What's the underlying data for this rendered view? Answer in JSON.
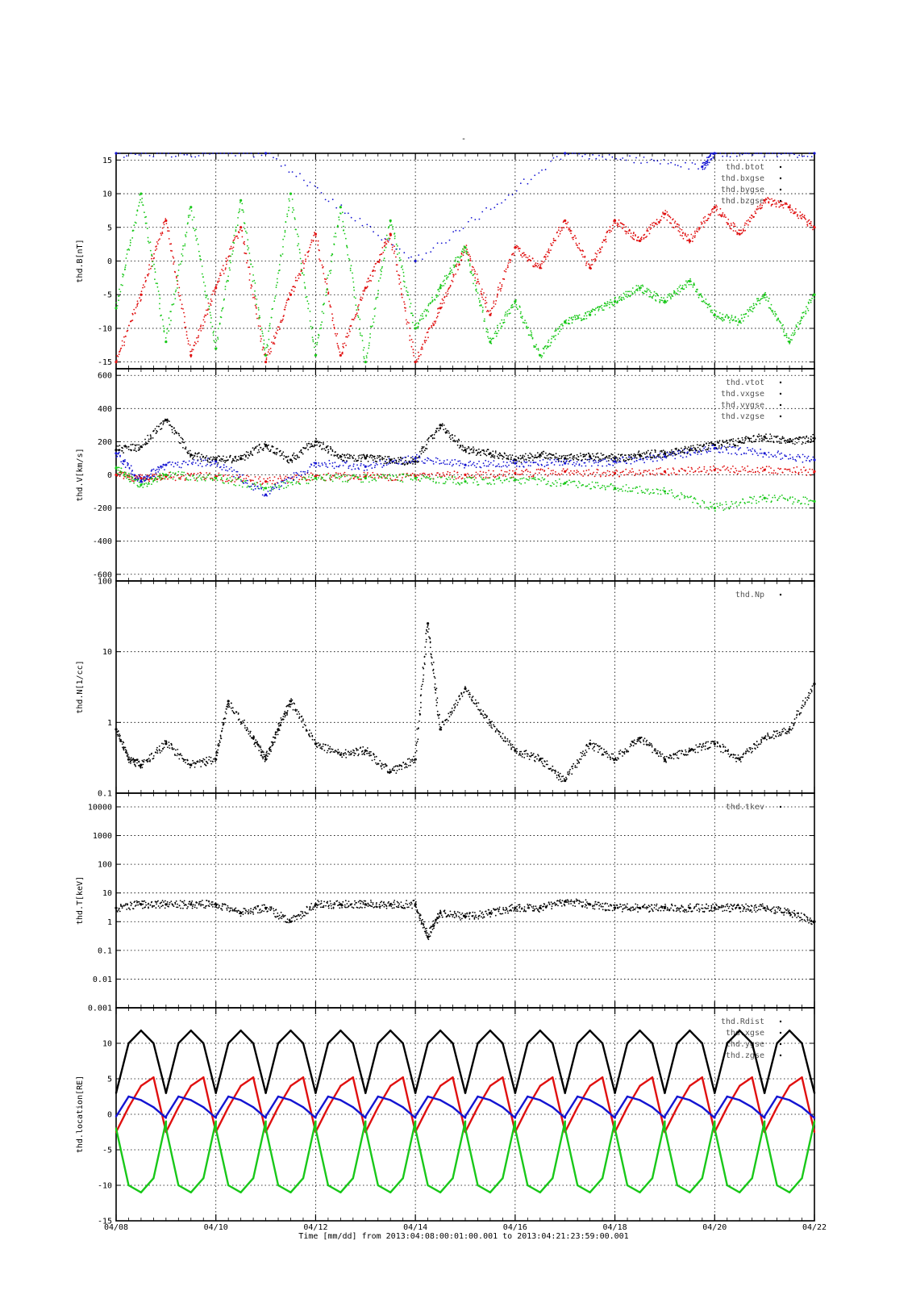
{
  "figure": {
    "title": "-",
    "time_caption": "Time [mm/dd]  from 2013:04:08:00:01:00.001  to  2013:04:21:23:59:00.001",
    "x_tick_labels": [
      "04/08",
      "04/10",
      "04/12",
      "04/14",
      "04/16",
      "04/18",
      "04/20",
      "04/22"
    ],
    "x_tick_days": [
      0,
      2,
      4,
      6,
      8,
      10,
      12,
      14
    ]
  },
  "colors": {
    "black": "#000000",
    "red": "#e01010",
    "green": "#19c819",
    "blue": "#1414d2",
    "axis": "#000000"
  },
  "chart_data": [
    {
      "type": "scatter",
      "ylabel": "thd.B[nT]",
      "ylim": [
        -16,
        16
      ],
      "yscale": "linear",
      "ytick_values": [
        -15,
        -10,
        -5,
        0,
        5,
        10,
        15
      ],
      "ytick_labels": [
        "-15",
        "-10",
        "-5",
        "0",
        "5",
        "10",
        "15"
      ],
      "legend": [
        "thd.btot",
        "thd.bxgse",
        "thd.bygse",
        "thd.bzgse"
      ],
      "series": [
        {
          "name": "thd.bxgse",
          "color": "red",
          "x": [
            "04/08",
            "04/08 12:00",
            "04/09",
            "04/09 12:00",
            "04/10",
            "04/10 12:00",
            "04/11",
            "04/11 12:00",
            "04/12",
            "04/12 12:00",
            "04/13",
            "04/13 12:00",
            "04/14",
            "04/14 12:00",
            "04/15",
            "04/15 12:00",
            "04/16",
            "04/16 12:00",
            "04/17",
            "04/17 12:00",
            "04/18",
            "04/18 12:00",
            "04/19",
            "04/19 12:00",
            "04/20",
            "04/20 12:00",
            "04/21",
            "04/21 12:00",
            "04/22"
          ],
          "values": [
            -15,
            -5,
            6,
            -14,
            -4,
            5,
            -15,
            -5,
            4,
            -14,
            -4,
            4,
            -15,
            -7,
            2,
            -8,
            2,
            -1,
            6,
            -1,
            6,
            3,
            7,
            3,
            8,
            4,
            9,
            8,
            5
          ]
        },
        {
          "name": "thd.bygse",
          "color": "green",
          "x": [
            "04/08",
            "04/08 12:00",
            "04/09",
            "04/09 12:00",
            "04/10",
            "04/10 12:00",
            "04/11",
            "04/11 12:00",
            "04/12",
            "04/12 12:00",
            "04/13",
            "04/13 12:00",
            "04/14",
            "04/14 12:00",
            "04/15",
            "04/15 12:00",
            "04/16",
            "04/16 12:00",
            "04/17",
            "04/17 12:00",
            "04/18",
            "04/18 12:00",
            "04/19",
            "04/19 12:00",
            "04/20",
            "04/20 12:00",
            "04/21",
            "04/21 12:00",
            "04/22"
          ],
          "values": [
            -7,
            10,
            -12,
            8,
            -13,
            9,
            -14,
            10,
            -14,
            8,
            -15,
            6,
            -10,
            -4,
            2,
            -12,
            -6,
            -14,
            -9,
            -8,
            -6,
            -4,
            -6,
            -3,
            -8,
            -9,
            -5,
            -12,
            -5
          ]
        },
        {
          "name": "thd.bzgse",
          "color": "blue",
          "x": [
            "04/08",
            "04/11",
            "04/14",
            "04/17",
            "04/19 18:00",
            "04/20",
            "04/22"
          ],
          "values": [
            16,
            16,
            0,
            16,
            14,
            16,
            16
          ]
        }
      ]
    },
    {
      "type": "scatter",
      "ylabel": "thd.V[km/s]",
      "ylim": [
        -640,
        640
      ],
      "yscale": "linear",
      "ytick_values": [
        -600,
        -400,
        -200,
        0,
        200,
        400,
        600
      ],
      "ytick_labels": [
        "-600",
        "-400",
        "-200",
        "0",
        "200",
        "400",
        "600"
      ],
      "legend": [
        "thd.vtot",
        "thd.vxgse",
        "thd.vygse",
        "thd.vzgse"
      ],
      "series": [
        {
          "name": "thd.vtot",
          "color": "black",
          "x": [
            "04/08",
            "04/08 12:00",
            "04/09",
            "04/09 12:00",
            "04/10",
            "04/10 12:00",
            "04/11",
            "04/11 12:00",
            "04/12",
            "04/12 12:00",
            "04/13",
            "04/13 12:00",
            "04/14",
            "04/14 12:00",
            "04/15",
            "04/15 12:00",
            "04/16",
            "04/16 12:00",
            "04/17",
            "04/17 12:00",
            "04/18",
            "04/18 12:00",
            "04/19",
            "04/19 12:00",
            "04/20",
            "04/20 12:00",
            "04/21",
            "04/21 12:00",
            "04/22"
          ],
          "values": [
            150,
            170,
            330,
            120,
            90,
            100,
            180,
            90,
            200,
            110,
            100,
            90,
            80,
            300,
            150,
            130,
            90,
            120,
            100,
            110,
            100,
            120,
            130,
            150,
            180,
            200,
            230,
            200,
            220
          ]
        },
        {
          "name": "thd.vxgse",
          "color": "red",
          "x": [
            "04/08",
            "04/08 12:00",
            "04/09",
            "04/10",
            "04/11",
            "04/12",
            "04/13",
            "04/14",
            "04/15",
            "04/16",
            "04/17",
            "04/18",
            "04/19",
            "04/20",
            "04/21",
            "04/22"
          ],
          "values": [
            0,
            -20,
            -10,
            -10,
            -40,
            -10,
            -10,
            -10,
            0,
            10,
            20,
            10,
            20,
            30,
            30,
            20
          ]
        },
        {
          "name": "thd.vygse",
          "color": "green",
          "x": [
            "04/08",
            "04/08 12:00",
            "04/09",
            "04/10",
            "04/11",
            "04/12",
            "04/13",
            "04/14",
            "04/15",
            "04/16",
            "04/17",
            "04/18",
            "04/19",
            "04/20",
            "04/21",
            "04/22"
          ],
          "values": [
            40,
            -60,
            0,
            -20,
            -80,
            -20,
            -20,
            -20,
            -40,
            -30,
            -50,
            -80,
            -100,
            -200,
            -140,
            -160
          ]
        },
        {
          "name": "thd.vzgse",
          "color": "blue",
          "x": [
            "04/08",
            "04/08 12:00",
            "04/09",
            "04/10",
            "04/11",
            "04/12",
            "04/13",
            "04/14",
            "04/15",
            "04/16",
            "04/17",
            "04/18",
            "04/19",
            "04/20",
            "04/21",
            "04/22"
          ],
          "values": [
            130,
            -40,
            60,
            80,
            -120,
            70,
            50,
            100,
            60,
            70,
            70,
            80,
            110,
            160,
            130,
            90
          ]
        }
      ]
    },
    {
      "type": "scatter",
      "ylabel": "thd.N[1/cc]",
      "ylim": [
        0.1,
        100
      ],
      "yscale": "log",
      "ytick_values": [
        0.1,
        1,
        10,
        100
      ],
      "ytick_labels": [
        "0.1",
        "1",
        "10",
        "100"
      ],
      "legend": [
        "thd.Np"
      ],
      "series": [
        {
          "name": "thd.Np",
          "color": "black",
          "x": [
            "04/08",
            "04/08 06:00",
            "04/08 12:00",
            "04/09",
            "04/09 12:00",
            "04/10",
            "04/10 06:00",
            "04/10 18:00",
            "04/11",
            "04/11 06:00",
            "04/11 12:00",
            "04/12",
            "04/12 12:00",
            "04/13",
            "04/13 12:00",
            "04/14",
            "04/14 06:00",
            "04/14 12:00",
            "04/15",
            "04/15 12:00",
            "04/16",
            "04/16 12:00",
            "04/17",
            "04/17 12:00",
            "04/18",
            "04/18 12:00",
            "04/19",
            "04/19 12:00",
            "04/20",
            "04/20 12:00",
            "04/21",
            "04/21 12:00",
            "04/22"
          ],
          "values": [
            0.8,
            0.3,
            0.25,
            0.5,
            0.25,
            0.3,
            2,
            0.6,
            0.3,
            0.8,
            2,
            0.5,
            0.35,
            0.4,
            0.2,
            0.3,
            25,
            0.8,
            3,
            1,
            0.4,
            0.3,
            0.15,
            0.5,
            0.3,
            0.6,
            0.3,
            0.4,
            0.5,
            0.3,
            0.6,
            0.8,
            3.5
          ]
        }
      ]
    },
    {
      "type": "scatter",
      "ylabel": "thd.T[keV]",
      "ylim": [
        0.001,
        30000
      ],
      "yscale": "log",
      "ytick_values": [
        0.001,
        0.01,
        0.1,
        1,
        10,
        100,
        1000,
        10000
      ],
      "ytick_labels": [
        "0.001",
        "0.01",
        "0.1",
        "1",
        "10",
        "100",
        "1000",
        "10000"
      ],
      "legend": [
        "thd.tkev"
      ],
      "series": [
        {
          "name": "thd.tkev",
          "color": "black",
          "x": [
            "04/08",
            "04/08 12:00",
            "04/09",
            "04/09 12:00",
            "04/10",
            "04/10 12:00",
            "04/11",
            "04/11 12:00",
            "04/12",
            "04/12 12:00",
            "04/13",
            "04/13 12:00",
            "04/14",
            "04/14 06:00",
            "04/14 12:00",
            "04/15",
            "04/15 12:00",
            "04/16",
            "04/16 12:00",
            "04/17",
            "04/17 12:00",
            "04/18",
            "04/18 12:00",
            "04/19",
            "04/19 12:00",
            "04/20",
            "04/20 12:00",
            "04/21",
            "04/21 12:00",
            "04/22"
          ],
          "values": [
            3,
            4,
            4,
            4,
            4,
            2,
            3,
            1,
            4,
            4,
            4,
            4,
            4,
            0.3,
            2,
            1.5,
            2,
            3,
            3,
            5,
            4,
            3,
            3,
            3,
            3,
            3,
            3,
            3,
            2,
            1
          ]
        }
      ]
    },
    {
      "type": "line",
      "ylabel": "thd.location[RE]",
      "ylim": [
        -15,
        15
      ],
      "yscale": "linear",
      "ytick_values": [
        -15,
        -10,
        -5,
        0,
        5,
        10
      ],
      "ytick_labels": [
        "-15",
        "-10",
        "-5",
        "0",
        "5",
        "10"
      ],
      "legend": [
        "thd.Rdist",
        "thd.xgse",
        "thd.ygse",
        "thd.zgse"
      ],
      "orbit_period_days": 1,
      "series": [
        {
          "name": "thd.Rdist",
          "color": "black",
          "x": [
            "04/08",
            "04/08 06:00",
            "04/08 12:00",
            "04/08 18:00",
            "04/09"
          ],
          "values": [
            3,
            10,
            11.8,
            10,
            3
          ]
        },
        {
          "name": "thd.xgse",
          "color": "red",
          "x": [
            "04/08",
            "04/08 06:00",
            "04/08 12:00",
            "04/08 18:00",
            "04/09"
          ],
          "values": [
            -2.5,
            1,
            4,
            5.2,
            -2.5
          ]
        },
        {
          "name": "thd.ygse",
          "color": "green",
          "x": [
            "04/08",
            "04/08 06:00",
            "04/08 12:00",
            "04/08 18:00",
            "04/09"
          ],
          "values": [
            -2,
            -10,
            -11,
            -9,
            -1
          ]
        },
        {
          "name": "thd.zgse",
          "color": "blue",
          "x": [
            "04/08",
            "04/08 06:00",
            "04/08 12:00",
            "04/08 18:00",
            "04/09"
          ],
          "values": [
            -0.3,
            2.5,
            2,
            1,
            -0.5
          ]
        }
      ]
    }
  ]
}
